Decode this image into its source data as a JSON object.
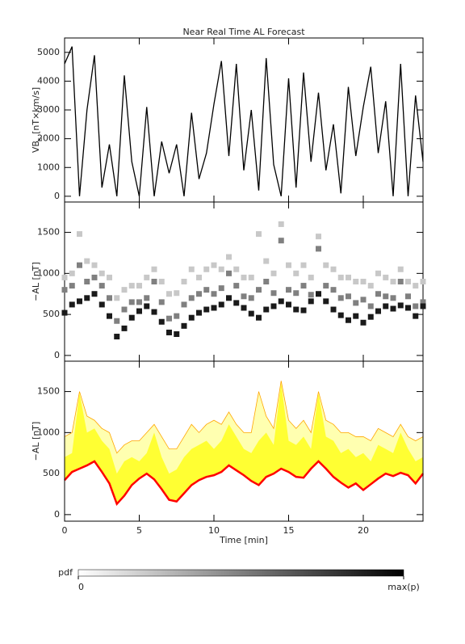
{
  "chart_data": [
    {
      "type": "line",
      "title": "Near Real Time AL Forecast",
      "ylabel": "VB",
      "ylabel_sub": "s",
      "ylabel_unit": "[nT×km/s]",
      "x": [
        0,
        0.5,
        1,
        1.5,
        2,
        2.5,
        3,
        3.5,
        4,
        4.5,
        5,
        5.5,
        6,
        6.5,
        7,
        7.5,
        8,
        8.5,
        9,
        9.5,
        10,
        10.5,
        11,
        11.5,
        12,
        12.5,
        13,
        13.5,
        14,
        14.5,
        15,
        15.5,
        16,
        16.5,
        17,
        17.5,
        18,
        18.5,
        19,
        19.5,
        20,
        20.5,
        21,
        21.5,
        22,
        22.5,
        23,
        23.5,
        24
      ],
      "values": [
        4600,
        5200,
        0,
        3000,
        4900,
        300,
        1800,
        0,
        4200,
        1200,
        0,
        3100,
        0,
        1900,
        800,
        1800,
        0,
        2900,
        600,
        1500,
        3200,
        4700,
        1400,
        4600,
        900,
        3000,
        200,
        4800,
        1100,
        0,
        4100,
        300,
        4300,
        1200,
        3600,
        900,
        2500,
        100,
        3800,
        1400,
        3100,
        4500,
        1500,
        3300,
        0,
        4600,
        0,
        3500,
        1200
      ],
      "color": "#000000",
      "xlim": [
        0,
        24
      ],
      "ylim": [
        -200,
        5500
      ],
      "yticks": [
        0,
        1000,
        2000,
        3000,
        4000,
        5000
      ]
    },
    {
      "type": "scatter",
      "ylabel": "−AL [nT]",
      "x": [
        0,
        0.5,
        1,
        1.5,
        2,
        2.5,
        3,
        3.5,
        4,
        4.5,
        5,
        5.5,
        6,
        6.5,
        7,
        7.5,
        8,
        8.5,
        9,
        9.5,
        10,
        10.5,
        11,
        11.5,
        12,
        12.5,
        13,
        13.5,
        14,
        14.5,
        15,
        15.5,
        16,
        16.5,
        17,
        17.5,
        18,
        18.5,
        19,
        19.5,
        20,
        20.5,
        21,
        21.5,
        22,
        22.5,
        23,
        23.5,
        24
      ],
      "series": [
        {
          "color": "#c8c8c8",
          "values": [
            950,
            1000,
            1480,
            1150,
            1100,
            1000,
            950,
            700,
            800,
            850,
            850,
            950,
            1050,
            900,
            750,
            760,
            900,
            1050,
            950,
            1050,
            1100,
            1050,
            1200,
            1050,
            950,
            950,
            1480,
            1150,
            1000,
            1600,
            1100,
            1000,
            1100,
            950,
            1450,
            1100,
            1050,
            950,
            950,
            900,
            900,
            850,
            1000,
            950,
            900,
            1050,
            900,
            850,
            900
          ]
        },
        {
          "color": "#808080",
          "values": [
            800,
            850,
            1100,
            900,
            950,
            850,
            700,
            420,
            560,
            650,
            650,
            700,
            900,
            650,
            450,
            480,
            620,
            700,
            750,
            800,
            750,
            820,
            1000,
            850,
            720,
            700,
            800,
            900,
            760,
            1400,
            800,
            760,
            850,
            740,
            1300,
            850,
            800,
            700,
            720,
            640,
            680,
            600,
            750,
            720,
            700,
            900,
            720,
            600,
            650
          ]
        },
        {
          "color": "#1a1a1a",
          "values": [
            520,
            620,
            660,
            700,
            750,
            620,
            480,
            230,
            330,
            460,
            540,
            600,
            530,
            410,
            280,
            260,
            360,
            460,
            520,
            560,
            580,
            620,
            700,
            640,
            580,
            510,
            460,
            560,
            600,
            660,
            620,
            560,
            550,
            660,
            750,
            660,
            560,
            490,
            430,
            480,
            400,
            470,
            540,
            600,
            570,
            610,
            580,
            480,
            600
          ]
        }
      ],
      "xlim": [
        0,
        24
      ],
      "ylim": [
        -70,
        1870
      ],
      "yticks": [
        0,
        500,
        1000,
        1500
      ]
    },
    {
      "type": "band",
      "ylabel": "−AL [nT]",
      "xlabel": "Time [min]",
      "x": [
        0,
        0.5,
        1,
        1.5,
        2,
        2.5,
        3,
        3.5,
        4,
        4.5,
        5,
        5.5,
        6,
        6.5,
        7,
        7.5,
        8,
        8.5,
        9,
        9.5,
        10,
        10.5,
        11,
        11.5,
        12,
        12.5,
        13,
        13.5,
        14,
        14.5,
        15,
        15.5,
        16,
        16.5,
        17,
        17.5,
        18,
        18.5,
        19,
        19.5,
        20,
        20.5,
        21,
        21.5,
        22,
        22.5,
        23,
        23.5,
        24
      ],
      "series": [
        {
          "color": "#ff0000",
          "values": [
            420,
            520,
            560,
            600,
            650,
            520,
            380,
            130,
            230,
            360,
            440,
            500,
            430,
            310,
            180,
            160,
            260,
            360,
            420,
            460,
            480,
            520,
            600,
            540,
            480,
            410,
            360,
            460,
            500,
            560,
            520,
            460,
            450,
            560,
            650,
            560,
            460,
            390,
            330,
            380,
            300,
            370,
            440,
            500,
            470,
            510,
            480,
            380,
            500
          ]
        },
        {
          "color": "#ffff33",
          "values": [
            700,
            750,
            1480,
            1000,
            1050,
            900,
            800,
            500,
            650,
            700,
            650,
            750,
            1000,
            700,
            500,
            550,
            700,
            800,
            850,
            900,
            800,
            900,
            1100,
            950,
            800,
            750,
            900,
            1000,
            850,
            1600,
            900,
            850,
            950,
            800,
            1480,
            950,
            900,
            750,
            800,
            700,
            750,
            650,
            850,
            800,
            750,
            1000,
            800,
            650,
            700
          ]
        },
        {
          "color": "#ffa500",
          "fill": "#ffffb0",
          "values": [
            950,
            1000,
            1500,
            1200,
            1150,
            1050,
            1000,
            750,
            850,
            900,
            900,
            1000,
            1100,
            950,
            800,
            800,
            950,
            1100,
            1000,
            1100,
            1150,
            1100,
            1250,
            1100,
            1000,
            1000,
            1500,
            1200,
            1050,
            1630,
            1150,
            1050,
            1150,
            1000,
            1500,
            1150,
            1100,
            1000,
            1000,
            950,
            950,
            900,
            1050,
            1000,
            950,
            1100,
            950,
            900,
            950
          ]
        }
      ],
      "xlim": [
        0,
        24
      ],
      "ylim": [
        -80,
        1870
      ],
      "yticks": [
        0,
        500,
        1000,
        1500
      ],
      "xticks": [
        0,
        5,
        10,
        15,
        20
      ]
    },
    {
      "type": "colorbar",
      "label": "pdf",
      "colors": [
        "#ffffff",
        "#000000"
      ],
      "lim": [
        0,
        1
      ],
      "ticks": [
        0,
        {
          "value": 1,
          "label": "max(p)"
        }
      ]
    }
  ]
}
